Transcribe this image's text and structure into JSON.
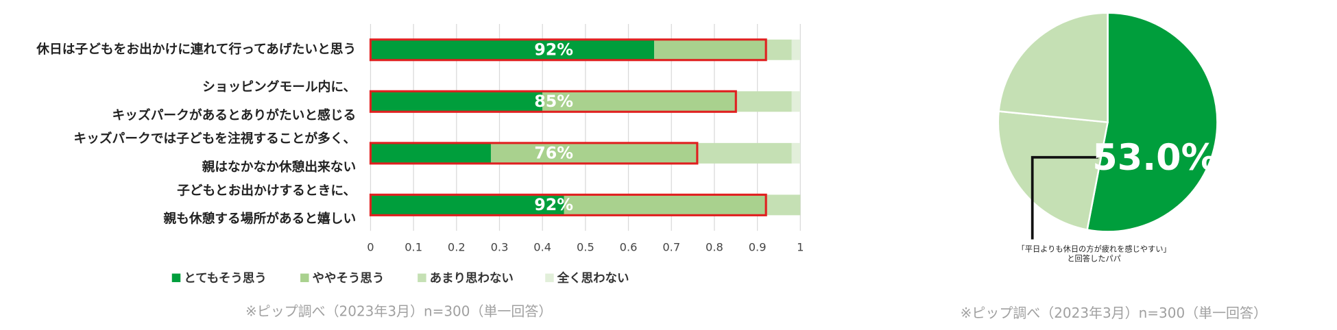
{
  "chart_data": [
    {
      "type": "stacked-barh",
      "categories": [
        [
          "休日は子どもをお出かけに連れて行ってあげたいと思う"
        ],
        [
          "ショッピングモール内に、",
          "キッズパークがあるとありがたいと感じる"
        ],
        [
          "キッズパークでは子どもを注視することが多く、",
          "親はなかなか休憩出来ない"
        ],
        [
          "子どもとお出かけするときに、",
          "親も休憩する場所があると嬉しい"
        ]
      ],
      "series": [
        {
          "name": "とてもそう思う",
          "color": "#009e3c",
          "values": [
            0.66,
            0.4,
            0.28,
            0.45
          ]
        },
        {
          "name": "ややそう思う",
          "color": "#a9d18e",
          "values": [
            0.26,
            0.45,
            0.48,
            0.47
          ]
        },
        {
          "name": "あまり思わない",
          "color": "#c5e0b4",
          "values": [
            0.06,
            0.13,
            0.22,
            0.08
          ]
        },
        {
          "name": "全く思わない",
          "color": "#e2efda",
          "values": [
            0.02,
            0.02,
            0.02,
            0
          ]
        }
      ],
      "top_labels": [
        "92%",
        "85%",
        "76%",
        "92%"
      ],
      "highlight_color": "#e02020",
      "xlim": [
        0,
        1
      ],
      "xticks": [
        0,
        0.1,
        0.2,
        0.3,
        0.4,
        0.5,
        0.6,
        0.7,
        0.8,
        0.9,
        1
      ],
      "grid": true,
      "footnote": "※ピップ調べ（2023年3月）n=300（単一回答）"
    },
    {
      "type": "pie",
      "values": [
        53.0,
        23.6,
        23.4
      ],
      "colors": [
        "#009e3c",
        "#c5e0b4",
        "#c5e0b4"
      ],
      "value_labels": [
        "53.0%",
        null,
        null
      ],
      "annotation": [
        "「平日よりも休日の方が疲れを感じやすい」",
        "と回答したパパ"
      ],
      "footnote": "※ピップ調べ（2023年3月）n=300（単一回答）"
    }
  ]
}
